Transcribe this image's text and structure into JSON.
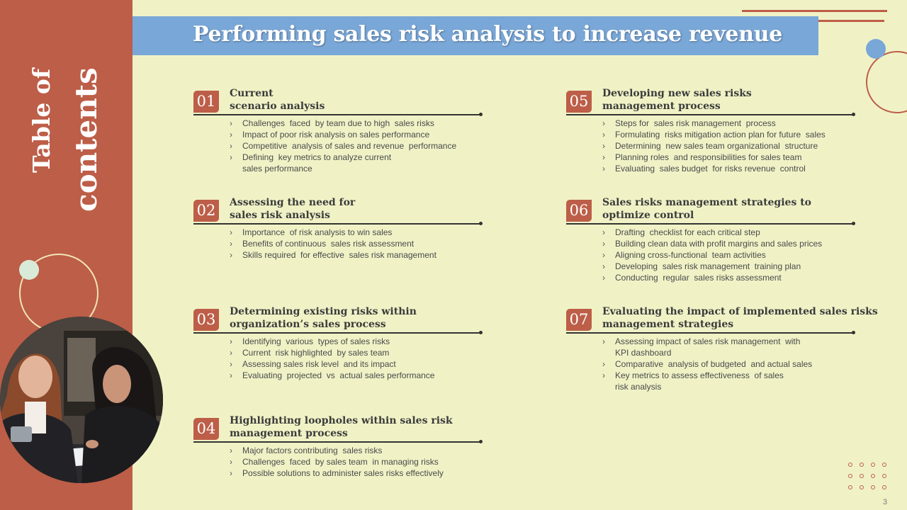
{
  "title": "Performing sales risk analysis to increase revenue",
  "sidebar": {
    "title_line1": "Table of",
    "title_line2": "contents"
  },
  "page_number": "3",
  "sections": [
    {
      "num": "01",
      "title": [
        "Current",
        "scenario analysis"
      ],
      "items": [
        "Challenges  faced  by team due to high  sales risks",
        "Impact of poor risk analysis on sales performance",
        "Competitive  analysis of sales and revenue  performance",
        "Defining  key metrics to analyze current\nsales performance"
      ]
    },
    {
      "num": "02",
      "title": [
        "Assessing  the need for",
        "sales risk analysis"
      ],
      "items": [
        "Importance  of risk analysis to win sales",
        "Benefits of continuous  sales risk assessment",
        "Skills required  for effective  sales risk management"
      ]
    },
    {
      "num": "03",
      "title": [
        "Determining existing risks within",
        "organization’s sales process"
      ],
      "items": [
        "Identifying  various  types of sales risks",
        "Current  risk highlighted  by sales team",
        "Assessing sales risk level  and its impact",
        "Evaluating  projected  vs  actual sales performance"
      ]
    },
    {
      "num": "04",
      "title": [
        "Highlighting loopholes within sales risk",
        "management process"
      ],
      "items": [
        "Major factors contributing  sales risks",
        "Challenges  faced  by sales team  in managing risks",
        "Possible solutions to administer sales risks effectively"
      ]
    },
    {
      "num": "05",
      "title": [
        "Developing new sales risks",
        "management process"
      ],
      "items": [
        "Steps for  sales risk management  process",
        "Formulating  risks mitigation action plan for future  sales",
        "Determining  new sales team organizational  structure",
        "Planning roles  and responsibilities for sales team",
        "Evaluating  sales budget  for risks revenue  control"
      ]
    },
    {
      "num": "06",
      "title": [
        "Sales risks management strategies to",
        "optimize control"
      ],
      "items": [
        "Drafting  checklist for each critical step",
        "Building clean data with profit margins and sales prices",
        "Aligning cross-functional  team activities",
        "Developing  sales risk management  training plan",
        "Conducting  regular  sales risks assessment"
      ]
    },
    {
      "num": "07",
      "title": [
        "Evaluating the impact of implemented sales risks",
        "management strategies"
      ],
      "items": [
        "Assessing impact of sales risk management  with\nKPI dashboard",
        "Comparative  analysis of budgeted  and actual sales",
        "Key metrics to assess effectiveness  of sales\nrisk analysis"
      ]
    }
  ],
  "colors": {
    "accent": "#bd5e48",
    "header": "#79a7d7",
    "background": "#f0f2c6"
  }
}
